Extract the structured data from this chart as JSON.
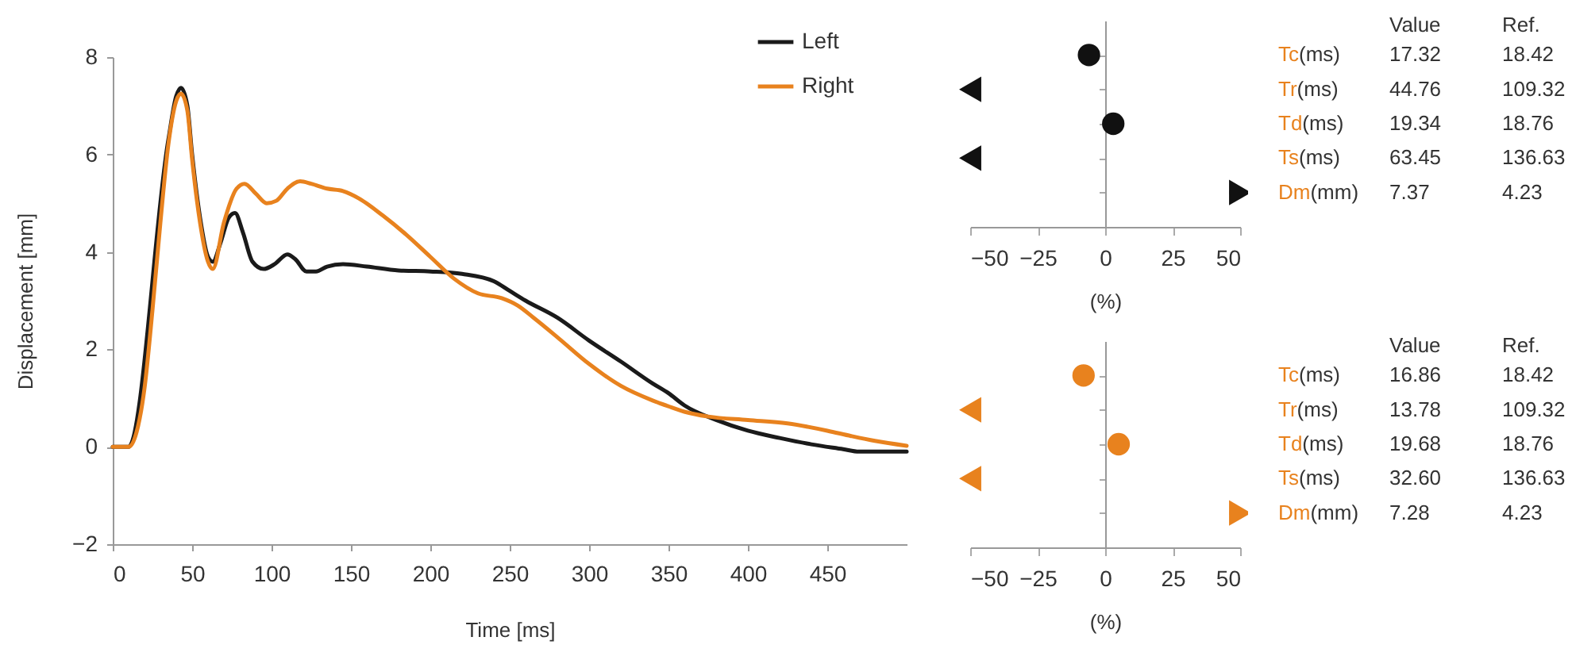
{
  "chart_data": [
    {
      "type": "line",
      "xlabel": "Time [ms]",
      "ylabel": "Displacement [mm]",
      "xlim": [
        0,
        500
      ],
      "xticks": [
        0,
        50,
        100,
        150,
        200,
        250,
        300,
        350,
        400,
        450
      ],
      "ylim": [
        -2,
        8
      ],
      "yticks": [
        -2,
        0,
        2,
        4,
        6,
        8
      ],
      "legend": "top right",
      "line_style": "solid",
      "series": [
        {
          "name": "Left",
          "color": "#1a1a1a",
          "x": [
            0,
            10,
            35,
            40,
            43,
            47,
            50,
            55,
            60,
            63,
            68,
            73,
            77,
            82,
            88,
            95,
            102,
            110,
            115,
            122,
            128,
            135,
            145,
            160,
            180,
            200,
            220,
            240,
            250,
            260,
            280,
            300,
            320,
            340,
            350,
            360,
            380,
            400,
            420,
            440,
            460,
            470,
            500
          ],
          "values": [
            0,
            0,
            6.3,
            7.2,
            7.37,
            7.0,
            6.0,
            4.7,
            3.9,
            3.8,
            4.2,
            4.7,
            4.8,
            4.4,
            3.8,
            3.65,
            3.75,
            3.95,
            3.85,
            3.6,
            3.6,
            3.7,
            3.75,
            3.7,
            3.62,
            3.6,
            3.55,
            3.4,
            3.2,
            3.0,
            2.65,
            2.18,
            1.75,
            1.3,
            1.1,
            0.85,
            0.55,
            0.33,
            0.18,
            0.05,
            -0.05,
            -0.1,
            -0.1
          ]
        },
        {
          "name": "Right",
          "color": "#e8821e",
          "x": [
            0,
            10,
            15,
            20,
            25,
            30,
            35,
            40,
            43,
            47,
            50,
            55,
            60,
            63,
            70,
            78,
            83,
            90,
            97,
            103,
            110,
            118,
            125,
            135,
            145,
            155,
            170,
            185,
            200,
            215,
            230,
            245,
            255,
            265,
            280,
            300,
            320,
            340,
            350,
            360,
            375,
            400,
            425,
            450,
            465,
            480,
            500
          ],
          "values": [
            0,
            0,
            0.3,
            1.2,
            2.8,
            4.6,
            6.2,
            7.1,
            7.25,
            6.9,
            5.9,
            4.6,
            3.8,
            3.65,
            4.6,
            5.3,
            5.4,
            5.2,
            5.0,
            5.05,
            5.3,
            5.45,
            5.4,
            5.3,
            5.25,
            5.1,
            4.75,
            4.35,
            3.9,
            3.45,
            3.15,
            3.05,
            2.9,
            2.65,
            2.25,
            1.7,
            1.25,
            0.95,
            0.83,
            0.72,
            0.62,
            0.55,
            0.48,
            0.33,
            0.22,
            0.12,
            0.02
          ]
        }
      ]
    },
    {
      "type": "scatter",
      "orientation": "horizontal",
      "categories": [
        null,
        null,
        null,
        null,
        null
      ],
      "xlim": [
        -50,
        50
      ],
      "xticks": [
        -50,
        -25,
        0,
        25,
        50
      ],
      "xlabel": "(%)",
      "tick_labels": "x",
      "marker": "circle",
      "series": [
        {
          "color": "#111111",
          "values": [
            -6,
            null,
            3,
            null,
            null
          ]
        },
        {
          "color": "#111111",
          "marker": "triangle",
          "values": [
            null,
            -50,
            null,
            -50,
            50
          ]
        }
      ]
    },
    {
      "type": "other",
      "color": "#e8821e",
      "categories": [
        "Value",
        "Ref."
      ],
      "y_categories": [
        "Tc(ms)",
        "Tr(ms)",
        "Td(ms)",
        "Ts(ms)",
        "Dm(mm)"
      ],
      "cell_labels": [
        [
          "17.32",
          "18.42"
        ],
        [
          "44.76",
          "109.32"
        ],
        [
          "19.34",
          "18.76"
        ],
        [
          "63.45",
          "136.63"
        ],
        [
          "7.37",
          "4.23"
        ]
      ]
    },
    {
      "type": "scatter",
      "orientation": "horizontal",
      "categories": [
        null,
        null,
        null,
        null,
        null
      ],
      "xlim": [
        -50,
        50
      ],
      "xticks": [
        -50,
        -25,
        0,
        25,
        50
      ],
      "xlabel": "(%)",
      "tick_labels": "x",
      "marker": "circle",
      "series": [
        {
          "color": "#e8821e",
          "values": [
            -8,
            null,
            5,
            null,
            null
          ]
        },
        {
          "color": "#e8821e",
          "marker": "triangle",
          "values": [
            null,
            -50,
            null,
            -50,
            50
          ]
        }
      ]
    },
    {
      "type": "other",
      "color": "#e8821e",
      "categories": [
        "Value",
        "Ref."
      ],
      "y_categories": [
        "Tc(ms)",
        "Tr(ms)",
        "Td(ms)",
        "Ts(ms)",
        "Dm(mm)"
      ],
      "cell_labels": [
        [
          "16.86",
          "18.42"
        ],
        [
          "13.78",
          "109.32"
        ],
        [
          "19.68",
          "18.76"
        ],
        [
          "32.60",
          "136.63"
        ],
        [
          "7.28",
          "4.23"
        ]
      ]
    }
  ]
}
